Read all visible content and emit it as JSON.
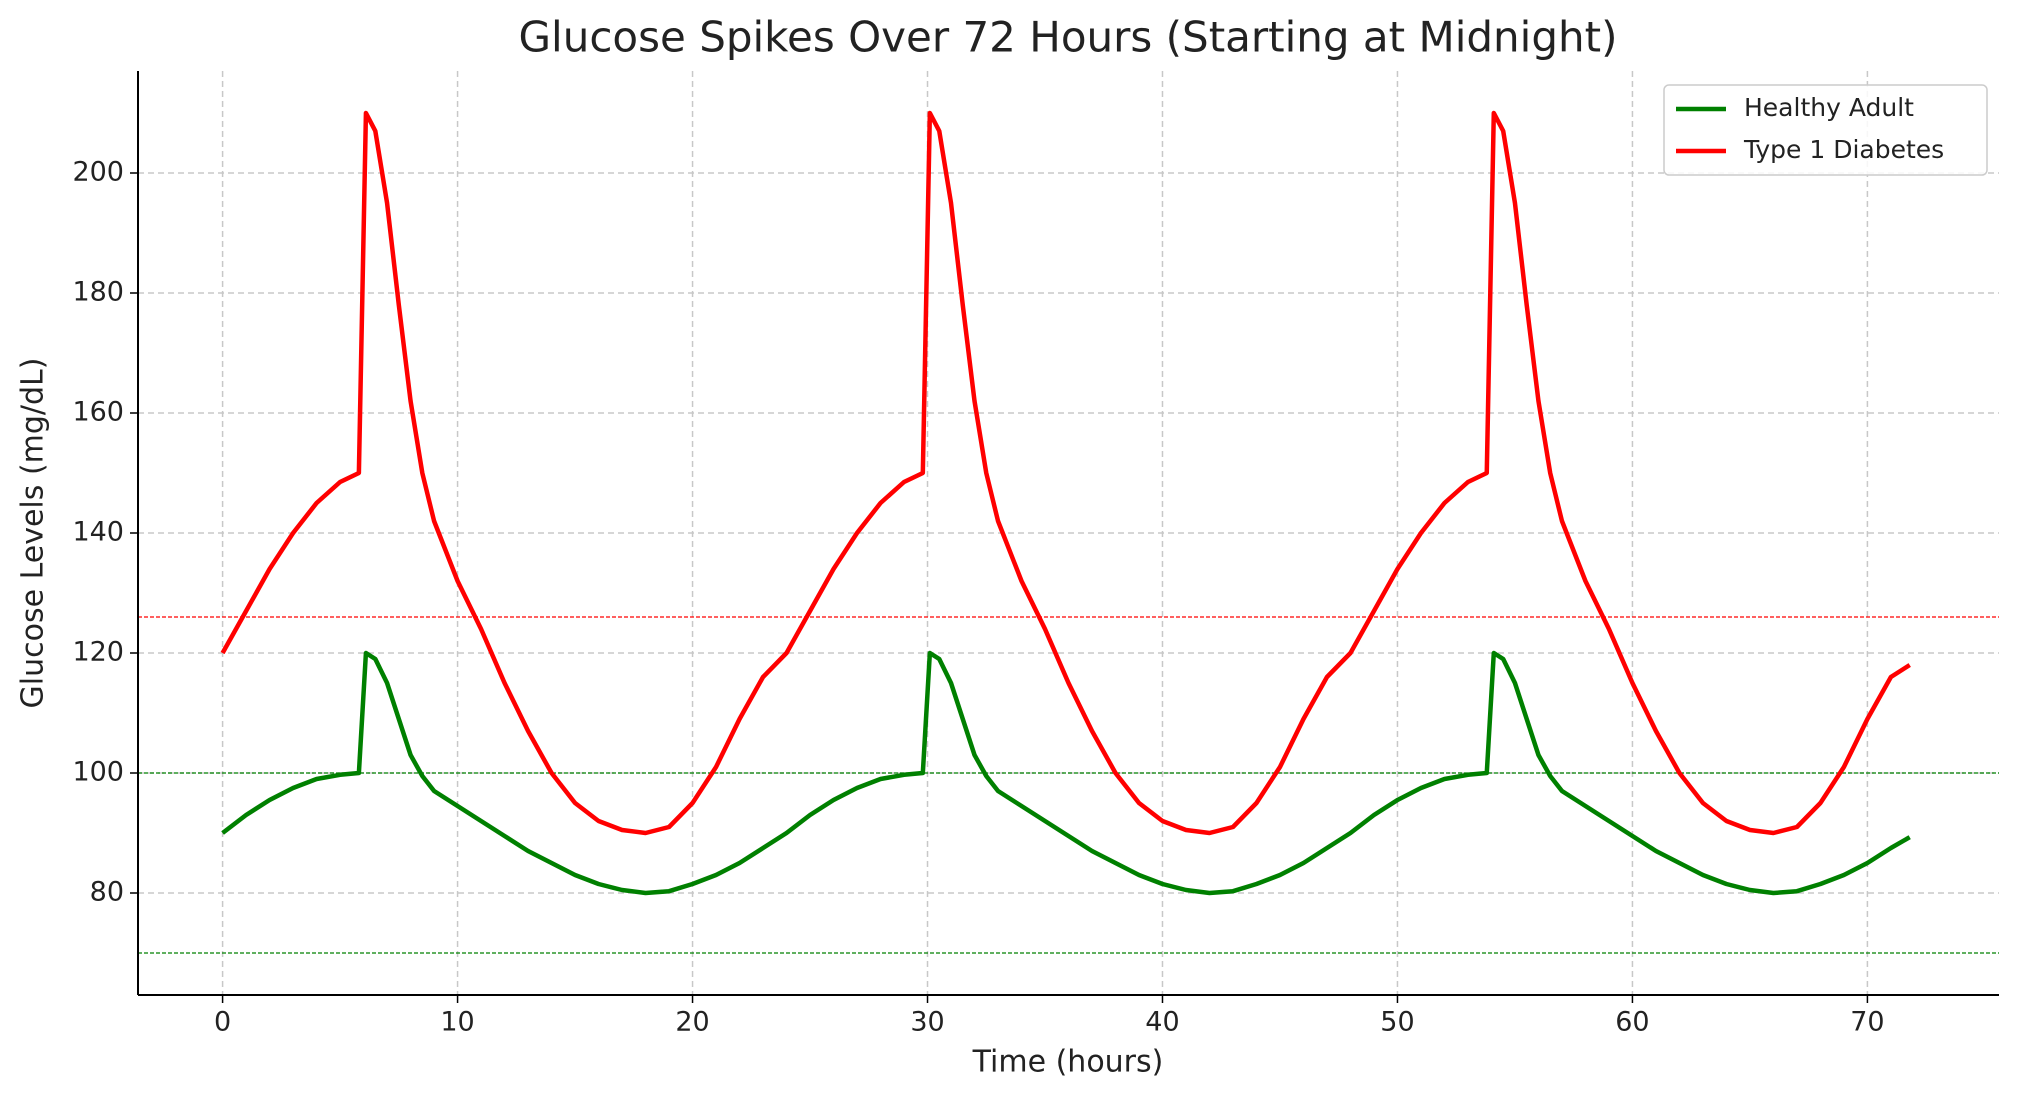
{
  "chart_data": {
    "type": "line",
    "title": "Glucose Spikes Over 72 Hours (Starting at Midnight)",
    "x_label": "Time (hours)",
    "y_label": "Glucose Levels (mg/dL)",
    "x": [
      0,
      1,
      2,
      3,
      4,
      5,
      5.8,
      6.1,
      6.5,
      7,
      7.5,
      8,
      8.5,
      9,
      10,
      11,
      12,
      13,
      14,
      15,
      16,
      17,
      18,
      19,
      20,
      21,
      22,
      23,
      24,
      25,
      26,
      27,
      28,
      29,
      29.8,
      30.1,
      30.5,
      31,
      31.5,
      32,
      32.5,
      33,
      34,
      35,
      36,
      37,
      38,
      39,
      40,
      41,
      42,
      43,
      44,
      45,
      46,
      47,
      48,
      49,
      50,
      51,
      52,
      53,
      53.8,
      54.1,
      54.5,
      55,
      55.5,
      56,
      56.5,
      57,
      58,
      59,
      60,
      61,
      62,
      63,
      64,
      65,
      66,
      67,
      68,
      69,
      70,
      71,
      71.8
    ],
    "series": [
      {
        "name": "Healthy Adult",
        "color": "#008000",
        "values": [
          90,
          93,
          95.5,
          97.5,
          99,
          99.7,
          100,
          120,
          119,
          115,
          109,
          103,
          99.5,
          97,
          94.5,
          92,
          89.5,
          87,
          85,
          83,
          81.5,
          80.5,
          80,
          80.3,
          81.5,
          83,
          85,
          87.5,
          90,
          93,
          95.5,
          97.5,
          99,
          99.7,
          100,
          120,
          119,
          115,
          109,
          103,
          99.5,
          97,
          94.5,
          92,
          89.5,
          87,
          85,
          83,
          81.5,
          80.5,
          80,
          80.3,
          81.5,
          83,
          85,
          87.5,
          90,
          93,
          95.5,
          97.5,
          99,
          99.7,
          100,
          120,
          119,
          115,
          109,
          103,
          99.5,
          97,
          94.5,
          92,
          89.5,
          87,
          85,
          83,
          81.5,
          80.5,
          80,
          80.3,
          81.5,
          83,
          85,
          87.5,
          89.3
        ]
      },
      {
        "name": "Type 1 Diabetes",
        "color": "#ff0000",
        "values": [
          120,
          127,
          134,
          140,
          145,
          148.5,
          150,
          210,
          207,
          195,
          178,
          162,
          150,
          142,
          132,
          124,
          115,
          107,
          100,
          95,
          92,
          90.5,
          90,
          91,
          95,
          101,
          109,
          116,
          120,
          127,
          134,
          140,
          145,
          148.5,
          150,
          210,
          207,
          195,
          178,
          162,
          150,
          142,
          132,
          124,
          115,
          107,
          100,
          95,
          92,
          90.5,
          90,
          91,
          95,
          101,
          109,
          116,
          120,
          127,
          134,
          140,
          145,
          148.5,
          150,
          210,
          207,
          195,
          178,
          162,
          150,
          142,
          132,
          124,
          115,
          107,
          100,
          95,
          92,
          90.5,
          90,
          91,
          95,
          101,
          109,
          116,
          118
        ]
      }
    ],
    "reference_lines": [
      {
        "value": 126,
        "color": "#ff0000"
      },
      {
        "value": 100,
        "color": "#008000"
      },
      {
        "value": 70,
        "color": "#008000"
      }
    ],
    "xlim": [
      -3.6,
      75.6
    ],
    "ylim": [
      63,
      217
    ],
    "xticks": [
      0,
      10,
      20,
      30,
      40,
      50,
      60,
      70
    ],
    "yticks": [
      80,
      100,
      120,
      140,
      160,
      180,
      200
    ],
    "grid": true,
    "legend": "upper right"
  }
}
